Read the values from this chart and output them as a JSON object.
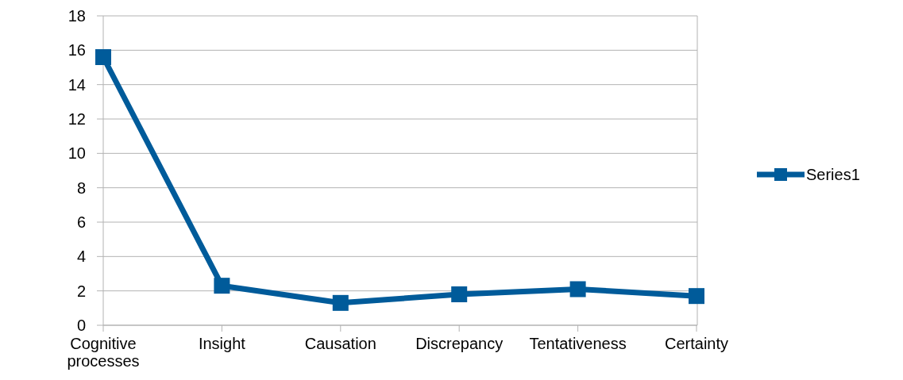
{
  "chart_data": {
    "type": "line",
    "categories": [
      "Cognitive processes",
      "Insight",
      "Causation",
      "Discrepancy",
      "Tentativeness",
      "Certainty"
    ],
    "series": [
      {
        "name": "Series1",
        "color": "#005b9a",
        "values": [
          15.6,
          2.3,
          1.3,
          1.8,
          2.1,
          1.7
        ]
      }
    ],
    "ylim": [
      0,
      18
    ],
    "yticks": [
      0,
      2,
      4,
      6,
      8,
      10,
      12,
      14,
      16,
      18
    ],
    "grid": "y",
    "legend": "right",
    "marker": "square",
    "line_style": "solid"
  }
}
